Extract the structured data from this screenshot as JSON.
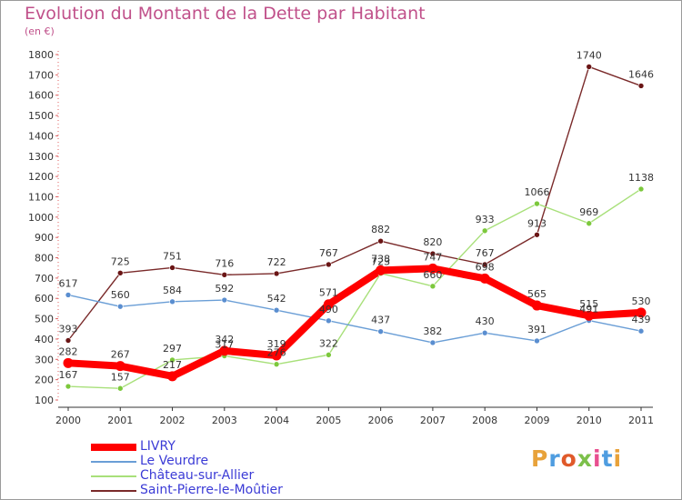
{
  "header": {
    "title": "Evolution du Montant de la Dette par Habitant",
    "subtitle": "(en €)"
  },
  "logo": {
    "text": "Proxiti",
    "colors": [
      "#e8a23a",
      "#4f9de0",
      "#e05a2a",
      "#7cc04a",
      "#e84f8f",
      "#4f9de0",
      "#e8a23a"
    ]
  },
  "chart_data": {
    "type": "line",
    "title": "Evolution du Montant de la Dette par Habitant",
    "subtitle": "(en €)",
    "xlabel": "",
    "ylabel": "",
    "x": [
      2000,
      2001,
      2002,
      2003,
      2004,
      2005,
      2006,
      2007,
      2008,
      2009,
      2010,
      2011
    ],
    "ylim": [
      100,
      1800
    ],
    "yticks": [
      100,
      200,
      300,
      400,
      500,
      600,
      700,
      800,
      900,
      1000,
      1100,
      1200,
      1300,
      1400,
      1500,
      1600,
      1700,
      1800
    ],
    "grid": false,
    "legend_position": "bottom-left",
    "series": [
      {
        "name": "LIVRY",
        "color": "#ff0000",
        "marker": "#ff0000",
        "values": [
          282,
          267,
          217,
          342,
          319,
          571,
          738,
          747,
          698,
          565,
          515,
          530
        ]
      },
      {
        "name": "Le Veurdre",
        "color": "#6a9ed6",
        "marker": "#5a8ed0",
        "values": [
          617,
          560,
          584,
          592,
          542,
          490,
          437,
          382,
          430,
          391,
          491,
          439
        ]
      },
      {
        "name": "Château-sur-Allier",
        "color": "#a8e07a",
        "marker": "#7cc83c",
        "values": [
          167,
          157,
          297,
          317,
          276,
          322,
          723,
          660,
          933,
          1066,
          969,
          1138
        ]
      },
      {
        "name": "Saint-Pierre-le-Moûtier",
        "color": "#7a2a2a",
        "marker": "#6a1515",
        "values": [
          393,
          725,
          751,
          716,
          722,
          767,
          882,
          820,
          767,
          913,
          1740,
          1646
        ]
      }
    ],
    "data_labels": [
      {
        "series": "LIVRY",
        "labels": [
          "282",
          "267",
          "217",
          "342",
          "319",
          "571",
          "738",
          "747",
          "698",
          "565",
          "515",
          "530"
        ]
      },
      {
        "series": "Le Veurdre",
        "labels": [
          "617",
          "560",
          "584",
          "592",
          "542",
          "490",
          "437",
          "382",
          "430",
          "391",
          "491",
          "439"
        ]
      },
      {
        "series": "Château-sur-Allier",
        "labels": [
          "167",
          "157",
          "297",
          "317",
          "276",
          "322",
          "723",
          "660",
          "933",
          "1066",
          "969",
          "1138"
        ]
      },
      {
        "series": "Saint-Pierre-le-Moûtier",
        "labels": [
          "393",
          "725",
          "751",
          "716",
          "722",
          "767",
          "882",
          "820",
          "767",
          "913",
          "1740",
          "1646"
        ]
      }
    ]
  }
}
